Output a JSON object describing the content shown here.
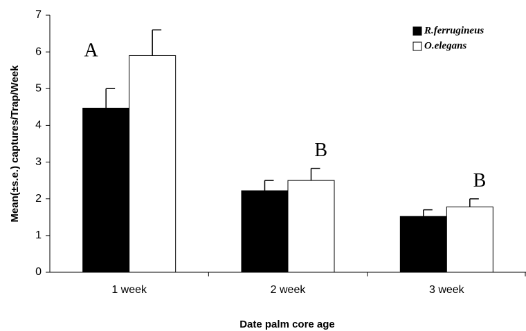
{
  "chart_data": {
    "type": "bar",
    "categories": [
      "1 week",
      "2 week",
      "3 week"
    ],
    "series": [
      {
        "name": "R.ferrugineus",
        "color": "#000000",
        "values": [
          4.47,
          2.22,
          1.52
        ],
        "errors": [
          0.53,
          0.28,
          0.18
        ]
      },
      {
        "name": "O.elegans",
        "color": "#ffffff",
        "values": [
          5.9,
          2.5,
          1.78
        ],
        "errors": [
          0.7,
          0.33,
          0.22
        ]
      }
    ],
    "annotations": [
      "A",
      "B",
      "B"
    ],
    "xlabel": "Date palm core age",
    "ylabel": "Mean(±s.e.) captures/Trap/Week",
    "ylim": [
      0,
      7
    ],
    "yticks": [
      0,
      1,
      2,
      3,
      4,
      5,
      6,
      7
    ],
    "legend": "top-right"
  }
}
